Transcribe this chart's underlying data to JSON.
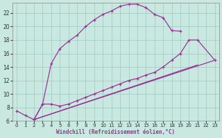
{
  "xlabel": "Windchill (Refroidissement éolien,°C)",
  "bg_color": "#c8e8e0",
  "line_color": "#993399",
  "grid_color": "#a0c8c0",
  "xlim": [
    -0.5,
    23.5
  ],
  "ylim": [
    6,
    23.5
  ],
  "xticks": [
    0,
    1,
    2,
    3,
    4,
    5,
    6,
    7,
    8,
    9,
    10,
    11,
    12,
    13,
    14,
    15,
    16,
    17,
    18,
    19,
    20,
    21,
    22,
    23
  ],
  "yticks": [
    6,
    8,
    10,
    12,
    14,
    16,
    18,
    20,
    22
  ],
  "curve1_x": [
    0,
    1,
    2,
    3,
    4,
    5,
    6,
    7,
    8,
    9,
    10,
    11,
    12,
    13,
    14,
    15,
    16,
    17,
    18,
    19
  ],
  "curve1_y": [
    7.5,
    6.8,
    6.2,
    8.5,
    14.5,
    16.7,
    17.8,
    18.7,
    20.0,
    21.0,
    21.8,
    22.3,
    23.0,
    23.3,
    23.3,
    22.8,
    21.8,
    21.3,
    19.4,
    19.3
  ],
  "curve1_has_markers": true,
  "curve2_x": [
    2,
    3,
    4,
    5,
    6,
    7,
    8,
    9,
    10,
    11,
    12,
    13,
    14,
    15,
    16,
    17,
    18,
    19,
    20,
    21,
    23
  ],
  "curve2_y": [
    6.2,
    8.5,
    8.5,
    8.2,
    8.5,
    9.0,
    9.5,
    10.0,
    10.5,
    11.0,
    11.5,
    12.0,
    12.3,
    12.8,
    13.2,
    14.0,
    15.0,
    16.0,
    18.0,
    18.0,
    15.0
  ],
  "curve2_has_markers": true,
  "curve3_x": [
    2,
    23
  ],
  "curve3_y": [
    6.2,
    15.0
  ],
  "curve3_has_markers": false,
  "curve4_x": [
    2,
    21
  ],
  "curve4_y": [
    6.2,
    14.3
  ],
  "curve4_has_markers": false
}
